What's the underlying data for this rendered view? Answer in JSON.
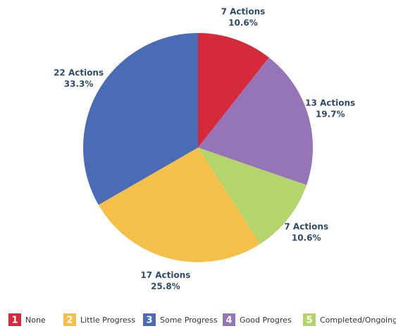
{
  "chart_data": {
    "type": "pie",
    "categories": [
      "None",
      "Good Progres",
      "Completed/Ongoing",
      "Little Progress",
      "Some Progress"
    ],
    "category_keys": [
      1,
      4,
      5,
      2,
      3
    ],
    "values": [
      7,
      13,
      7,
      17,
      22
    ],
    "value_labels": [
      "7 Actions",
      "13 Actions",
      "7 Actions",
      "17 Actions",
      "22 Actions"
    ],
    "percent_labels": [
      "10.6%",
      "19.7%",
      "10.6%",
      "25.8%",
      "33.3%"
    ],
    "colors": [
      "#d42a3a",
      "#9575b8",
      "#b3d56c",
      "#f5c04a",
      "#4a6bb5"
    ],
    "legend": "bottom"
  }
}
